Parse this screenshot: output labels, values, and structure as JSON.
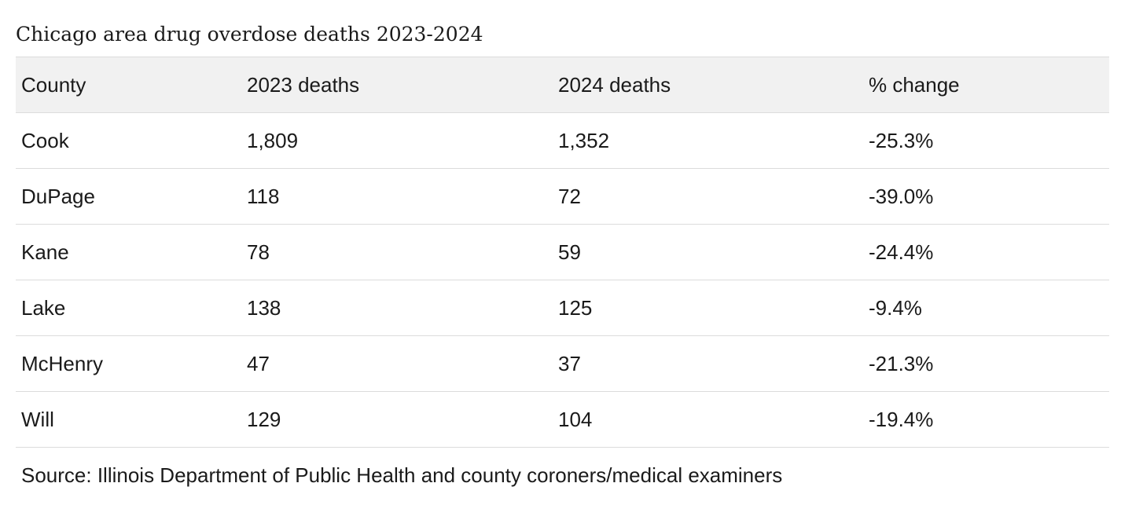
{
  "chart_data": {
    "type": "table",
    "title": "Chicago area drug overdose deaths 2023-2024",
    "columns": [
      "County",
      "2023 deaths",
      "2024 deaths",
      "% change"
    ],
    "rows": [
      [
        "Cook",
        "1,809",
        "1,352",
        "-25.3%"
      ],
      [
        "DuPage",
        "118",
        "72",
        "-39.0%"
      ],
      [
        "Kane",
        "78",
        "59",
        "-24.4%"
      ],
      [
        "Lake",
        "138",
        "125",
        "-9.4%"
      ],
      [
        "McHenry",
        "47",
        "37",
        "-21.3%"
      ],
      [
        "Will",
        "129",
        "104",
        "-19.4%"
      ]
    ],
    "source": "Source: Illinois Department of Public Health and county coroners/medical examiners"
  },
  "colors": {
    "header_background": "#f1f1f1",
    "row_divider": "#dcdcdc",
    "text": "#1a1a1a"
  }
}
